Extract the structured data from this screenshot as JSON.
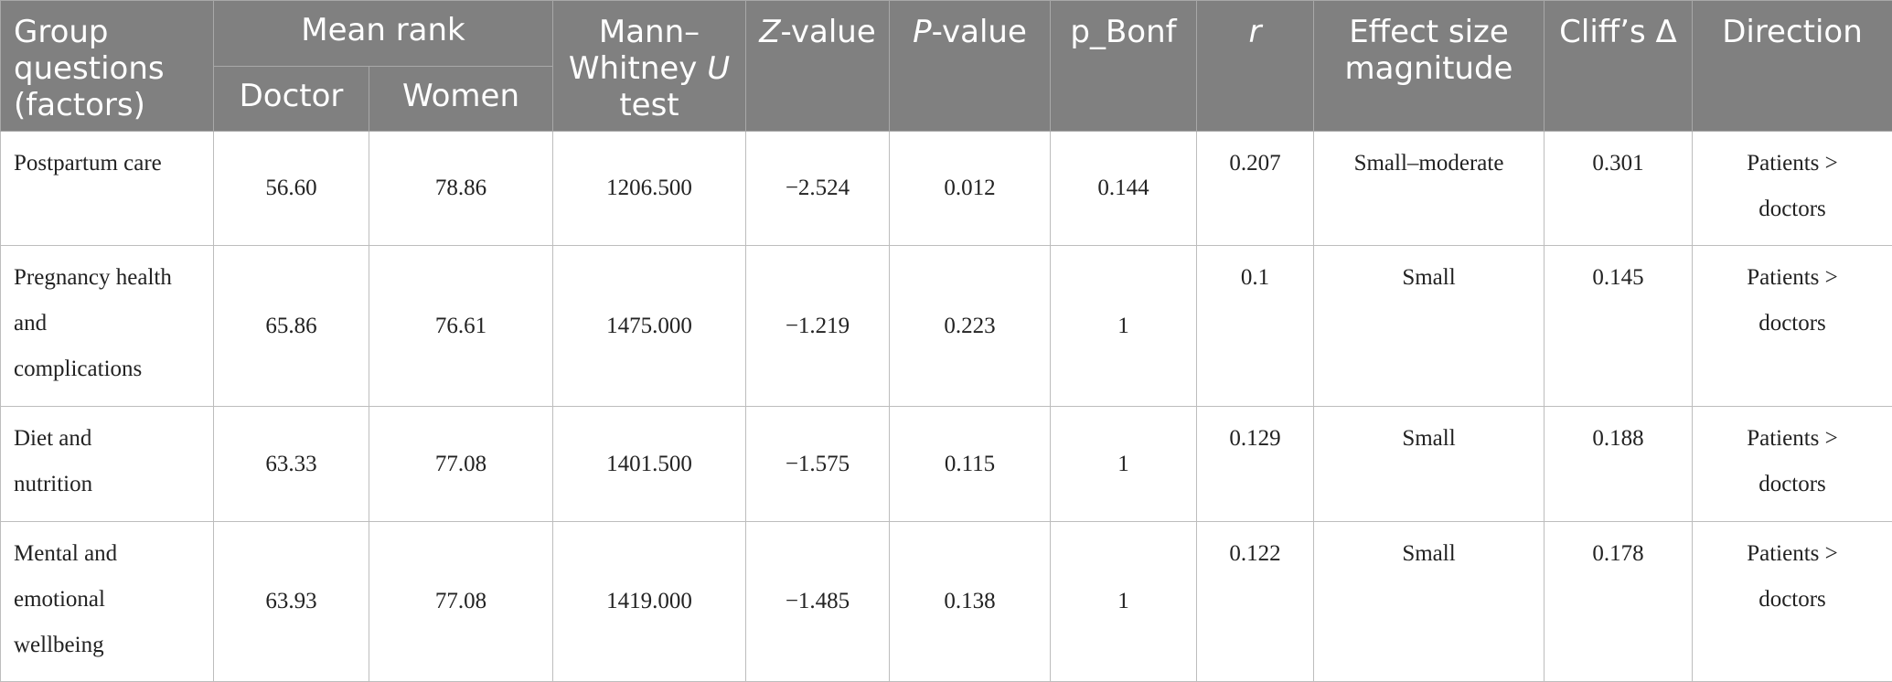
{
  "header": {
    "group_l1": "Group",
    "group_l2": "questions",
    "group_l3": "(factors)",
    "mean_rank": "Mean rank",
    "doctor": "Doctor",
    "women": "Women",
    "mw_l1": "Mann–",
    "mw_l2a": "Whitney ",
    "mw_l2b": "U",
    "mw_l3": "test",
    "z_a": "Z",
    "z_b": "-value",
    "p_a": "P",
    "p_b": "-value",
    "p_bonf": "p_Bonf",
    "r": "r",
    "es_l1": "Effect size",
    "es_l2": "magnitude",
    "cliff": "Cliff’s Δ",
    "direction": "Direction"
  },
  "rows": [
    {
      "factor_lines": [
        "Postpartum care"
      ],
      "doctor": "56.60",
      "women": "78.86",
      "u": "1206.500",
      "z": "−2.524",
      "p": "0.012",
      "p_bonf": "0.144",
      "r": "0.207",
      "effect": "Small–moderate",
      "cliff": "0.301",
      "direction_l1": "Patients >",
      "direction_l2": "doctors"
    },
    {
      "factor_lines": [
        "Pregnancy health",
        "and",
        "complications"
      ],
      "doctor": "65.86",
      "women": "76.61",
      "u": "1475.000",
      "z": "−1.219",
      "p": "0.223",
      "p_bonf": "1",
      "r": "0.1",
      "effect": "Small",
      "cliff": "0.145",
      "direction_l1": "Patients >",
      "direction_l2": "doctors"
    },
    {
      "factor_lines": [
        "Diet and",
        "nutrition"
      ],
      "doctor": "63.33",
      "women": "77.08",
      "u": "1401.500",
      "z": "−1.575",
      "p": "0.115",
      "p_bonf": "1",
      "r": "0.129",
      "effect": "Small",
      "cliff": "0.188",
      "direction_l1": "Patients >",
      "direction_l2": "doctors"
    },
    {
      "factor_lines": [
        "Mental and",
        "emotional",
        "wellbeing"
      ],
      "doctor": "63.93",
      "women": "77.08",
      "u": "1419.000",
      "z": "−1.485",
      "p": "0.138",
      "p_bonf": "1",
      "r": "0.122",
      "effect": "Small",
      "cliff": "0.178",
      "direction_l1": "Patients >",
      "direction_l2": "doctors"
    }
  ]
}
